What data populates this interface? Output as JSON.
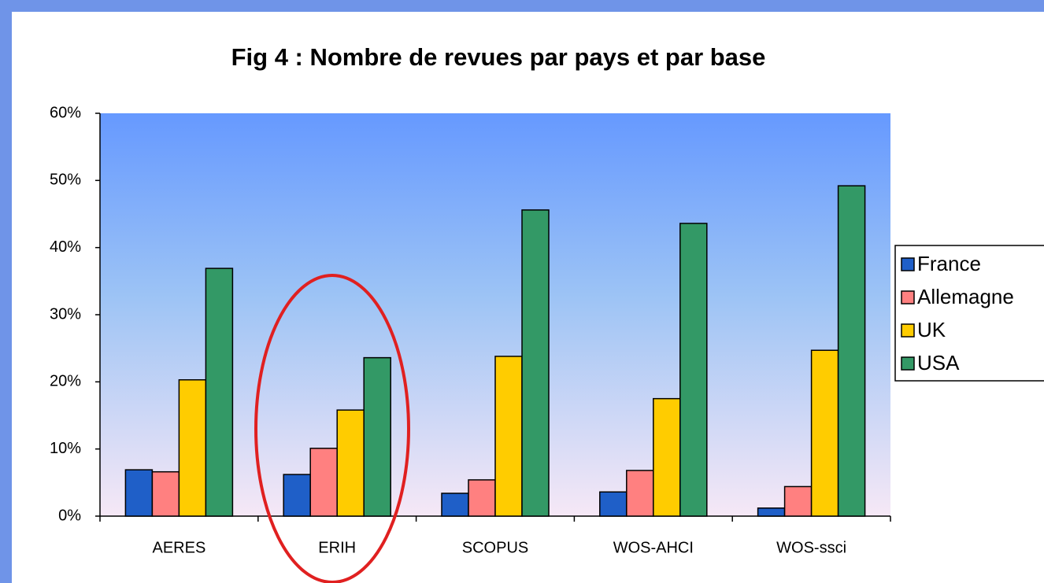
{
  "chart_data": {
    "type": "bar",
    "title": "Fig 4 : Nombre de revues par pays et par base",
    "categories": [
      "AERES",
      "ERIH",
      "SCOPUS",
      "WOS-AHCI",
      "WOS-ssci"
    ],
    "series": [
      {
        "name": "France",
        "color": "#1f5fc8",
        "values": [
          6.9,
          6.2,
          3.4,
          3.6,
          1.2
        ]
      },
      {
        "name": "Allemagne",
        "color": "#ff8080",
        "values": [
          6.6,
          10.1,
          5.4,
          6.8,
          4.4
        ]
      },
      {
        "name": "UK",
        "color": "#ffcc00",
        "values": [
          20.3,
          15.8,
          23.8,
          17.5,
          24.7
        ]
      },
      {
        "name": "USA",
        "color": "#339966",
        "values": [
          36.9,
          23.6,
          45.6,
          43.6,
          49.2
        ]
      }
    ],
    "ylim": [
      0,
      60
    ],
    "yticks": [
      {
        "value": 0,
        "label": "0%"
      },
      {
        "value": 10,
        "label": "10%"
      },
      {
        "value": 20,
        "label": "20%"
      },
      {
        "value": 30,
        "label": "30%"
      },
      {
        "value": 40,
        "label": "40%"
      },
      {
        "value": 50,
        "label": "50%"
      },
      {
        "value": 60,
        "label": "60%"
      }
    ],
    "legend": "right"
  }
}
